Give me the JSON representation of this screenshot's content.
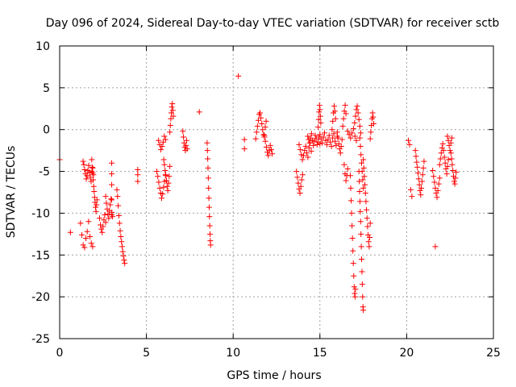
{
  "chart_data": {
    "type": "scatter",
    "title": "Day 096 of 2024, Sidereal Day-to-day VTEC variation (SDTVAR) for receiver sctb",
    "xlabel": "GPS time / hours",
    "ylabel": "SDTVAR / TECUs",
    "xlim": [
      0,
      25
    ],
    "ylim": [
      -25,
      10
    ],
    "xticks": [
      0,
      5,
      10,
      15,
      20,
      25
    ],
    "yticks": [
      -25,
      -20,
      -15,
      -10,
      -5,
      0,
      5,
      10
    ],
    "grid": true,
    "marker": "+",
    "color": "#ff0000",
    "series": [
      {
        "name": "sctb",
        "segments": [
          {
            "x0": 0.0,
            "x1": 0.0,
            "y": [
              -3.6
            ]
          },
          {
            "x0": 0.62,
            "x1": 0.62,
            "y": [
              -12.3
            ]
          },
          {
            "x0": 1.2,
            "x1": 1.9,
            "y": [
              -11.2,
              -12.6,
              -13.8,
              -14.1,
              -13.0,
              -12.2,
              -11.0,
              -12.8,
              -13.6,
              -14.0
            ]
          },
          {
            "x0": 1.35,
            "x1": 1.95,
            "y": [
              -3.8,
              -4.2,
              -4.8,
              -5.3,
              -5.9,
              -5.5,
              -4.9,
              -4.3,
              -5.1,
              -5.7,
              -6.2,
              -5.0,
              -4.6,
              -5.4
            ]
          },
          {
            "x0": 1.85,
            "x1": 2.15,
            "y": [
              -3.6,
              -4.5,
              -5.2,
              -6.0,
              -6.8,
              -7.4,
              -8.1,
              -8.7,
              -9.3,
              -9.8,
              -9.0,
              -8.4
            ]
          },
          {
            "x0": 2.3,
            "x1": 2.65,
            "y": [
              -10.6,
              -11.4,
              -11.9,
              -12.3,
              -11.6,
              -10.8,
              -10.2,
              -11.1
            ]
          },
          {
            "x0": 2.65,
            "x1": 3.05,
            "y": [
              -8.0,
              -8.8,
              -9.5,
              -10.1,
              -10.6,
              -9.7,
              -9.0,
              -8.3,
              -9.9,
              -10.4
            ]
          },
          {
            "x0": 3.0,
            "x1": 3.0,
            "y": [
              -4.0,
              -5.3,
              -6.6,
              -8.4,
              -10.2
            ]
          },
          {
            "x0": 3.3,
            "x1": 3.75,
            "y": [
              -7.2,
              -8.0,
              -9.1,
              -10.3,
              -11.2,
              -12.1,
              -12.8,
              -13.4,
              -14.0,
              -14.6,
              -15.1,
              -15.6,
              -16.0
            ]
          },
          {
            "x0": 4.5,
            "x1": 4.5,
            "y": [
              -4.8,
              -5.4,
              -6.2
            ]
          },
          {
            "x0": 5.6,
            "x1": 6.1,
            "y": [
              -5.0,
              -5.6,
              -6.3,
              -7.0,
              -7.6,
              -8.2,
              -7.7,
              -6.9,
              -6.2,
              -5.4
            ]
          },
          {
            "x0": 5.7,
            "x1": 6.1,
            "y": [
              -1.3,
              -1.8,
              -2.4,
              -2.0,
              -1.5,
              -0.8,
              -1.2
            ]
          },
          {
            "x0": 6.0,
            "x1": 6.35,
            "y": [
              -3.6,
              -4.2,
              -4.9,
              -5.5,
              -6.1,
              -6.8,
              -7.3,
              -6.4,
              -5.6,
              -4.4
            ]
          },
          {
            "x0": 6.35,
            "x1": 6.55,
            "y": [
              -0.3,
              0.5,
              1.3,
              2.0,
              2.7,
              3.1,
              2.3,
              1.6
            ]
          },
          {
            "x0": 7.1,
            "x1": 7.35,
            "y": [
              -0.2,
              -0.9,
              -1.6,
              -2.1,
              -2.5,
              -1.9,
              -1.3,
              -2.3
            ]
          },
          {
            "x0": 8.05,
            "x1": 8.05,
            "y": [
              2.1
            ]
          },
          {
            "x0": 8.5,
            "x1": 8.7,
            "y": [
              -1.6,
              -2.5,
              -3.5,
              -4.6,
              -5.8,
              -7.0,
              -8.2,
              -9.3,
              -10.4,
              -11.5,
              -12.5,
              -13.3,
              -13.8
            ]
          },
          {
            "x0": 10.3,
            "x1": 10.3,
            "y": [
              6.4
            ]
          },
          {
            "x0": 10.65,
            "x1": 10.65,
            "y": [
              -1.2,
              -2.3
            ]
          },
          {
            "x0": 11.3,
            "x1": 11.9,
            "y": [
              -1.1,
              -0.3,
              0.4,
              1.1,
              1.8,
              2.0,
              1.4,
              0.7,
              0.0,
              -0.6,
              -0.9,
              0.3,
              1.0
            ]
          },
          {
            "x0": 11.8,
            "x1": 12.25,
            "y": [
              -0.7,
              -1.4,
              -2.1,
              -2.7,
              -3.1,
              -2.5,
              -1.9,
              -2.4,
              -2.9
            ]
          },
          {
            "x0": 13.65,
            "x1": 14.0,
            "y": [
              -5.0,
              -5.7,
              -6.4,
              -7.1,
              -7.6,
              -6.8,
              -6.0,
              -5.4
            ]
          },
          {
            "x0": 13.8,
            "x1": 14.5,
            "y": [
              -1.8,
              -2.4,
              -3.0,
              -3.6,
              -3.1,
              -2.5,
              -2.0,
              -2.8,
              -3.3,
              -2.2,
              -1.6,
              -2.6
            ]
          },
          {
            "x0": 14.3,
            "x1": 15.0,
            "y": [
              -0.8,
              -1.2,
              -1.6,
              -1.0,
              -0.5,
              -1.3,
              -1.9,
              -1.4,
              -0.7,
              -1.1,
              -1.8,
              -1.5,
              -0.9,
              -1.7
            ]
          },
          {
            "x0": 14.9,
            "x1": 15.05,
            "y": [
              0.3,
              1.2,
              2.1,
              2.9,
              2.4,
              1.6,
              0.8
            ]
          },
          {
            "x0": 15.0,
            "x1": 16.0,
            "y": [
              -0.6,
              -1.1,
              -1.6,
              -0.9,
              -0.4,
              -1.3,
              -1.8,
              -1.2,
              -0.7,
              -1.5,
              -2.0,
              -1.0,
              -0.5,
              -1.4,
              -1.9,
              -0.8
            ]
          },
          {
            "x0": 15.7,
            "x1": 15.9,
            "y": [
              0.0,
              1.0,
              2.0,
              2.8,
              2.2,
              1.3
            ]
          },
          {
            "x0": 16.0,
            "x1": 16.5,
            "y": [
              -0.3,
              -1.0,
              -1.7,
              -2.3,
              -2.8,
              -2.0,
              -1.2,
              0.4,
              1.3,
              2.2,
              2.9,
              1.9
            ]
          },
          {
            "x0": 16.4,
            "x1": 16.6,
            "y": [
              -4.2,
              -5.3,
              -6.1,
              -5.5,
              -4.7
            ]
          },
          {
            "x0": 16.6,
            "x1": 17.1,
            "y": [
              -0.2,
              -0.6,
              -1.0,
              -0.4,
              0.1,
              -0.8,
              -1.3
            ]
          },
          {
            "x0": 16.75,
            "x1": 17.05,
            "y": [
              -5.5,
              -7.0,
              -8.5,
              -10.0,
              -11.5,
              -13.0,
              -14.5,
              -16.0,
              -17.5,
              -18.8,
              -19.6,
              -20.0,
              -19.1
            ]
          },
          {
            "x0": 17.0,
            "x1": 17.35,
            "y": [
              0.8,
              1.6,
              2.4,
              2.8,
              2.0,
              1.2,
              0.4,
              -0.4
            ]
          },
          {
            "x0": 17.25,
            "x1": 17.5,
            "y": [
              -5.0,
              -6.2,
              -7.4,
              -8.6,
              -9.8,
              -11.0,
              -12.5,
              -14.0,
              -15.5,
              -17.0,
              -18.5,
              -20.0,
              -21.2,
              -21.6
            ]
          },
          {
            "x0": 17.3,
            "x1": 17.5,
            "y": [
              -1.0,
              -2.0,
              -3.0,
              -4.0,
              -5.0,
              -6.0,
              -7.0
            ]
          },
          {
            "x0": 17.5,
            "x1": 17.9,
            "y": [
              -3.6,
              -4.6,
              -5.6,
              -6.6,
              -7.6,
              -8.6,
              -9.6,
              -10.6,
              -11.6,
              -12.6,
              -13.4,
              -14.0,
              -12.9,
              -11.2
            ]
          },
          {
            "x0": 17.9,
            "x1": 18.1,
            "y": [
              -1.1,
              -0.3,
              0.5,
              1.3,
              2.0,
              1.5,
              0.7
            ]
          },
          {
            "x0": 20.1,
            "x1": 20.3,
            "y": [
              -1.3,
              -1.8,
              -7.2,
              -8.0
            ]
          },
          {
            "x0": 20.5,
            "x1": 21.0,
            "y": [
              -2.5,
              -3.2,
              -3.9,
              -4.5,
              -5.2,
              -5.9,
              -6.6,
              -7.3,
              -7.8,
              -7.0,
              -6.2,
              -5.4,
              -4.6,
              -3.8
            ]
          },
          {
            "x0": 21.5,
            "x1": 21.9,
            "y": [
              -4.9,
              -5.6,
              -6.3,
              -7.0,
              -7.6,
              -8.1,
              -7.3,
              -6.5,
              -5.8
            ]
          },
          {
            "x0": 21.65,
            "x1": 21.65,
            "y": [
              -14.0
            ]
          },
          {
            "x0": 21.9,
            "x1": 22.4,
            "y": [
              -4.2,
              -3.5,
              -2.8,
              -2.2,
              -1.7,
              -2.5,
              -3.3,
              -4.0,
              -4.7,
              -5.3,
              -4.4,
              -3.6
            ]
          },
          {
            "x0": 22.35,
            "x1": 22.6,
            "y": [
              -0.8,
              -1.3,
              -1.9,
              -2.5,
              -1.6,
              -1.0
            ]
          },
          {
            "x0": 22.55,
            "x1": 22.85,
            "y": [
              -2.8,
              -3.5,
              -4.2,
              -4.9,
              -5.6,
              -6.2,
              -6.5,
              -5.8,
              -5.1
            ]
          }
        ]
      }
    ]
  }
}
